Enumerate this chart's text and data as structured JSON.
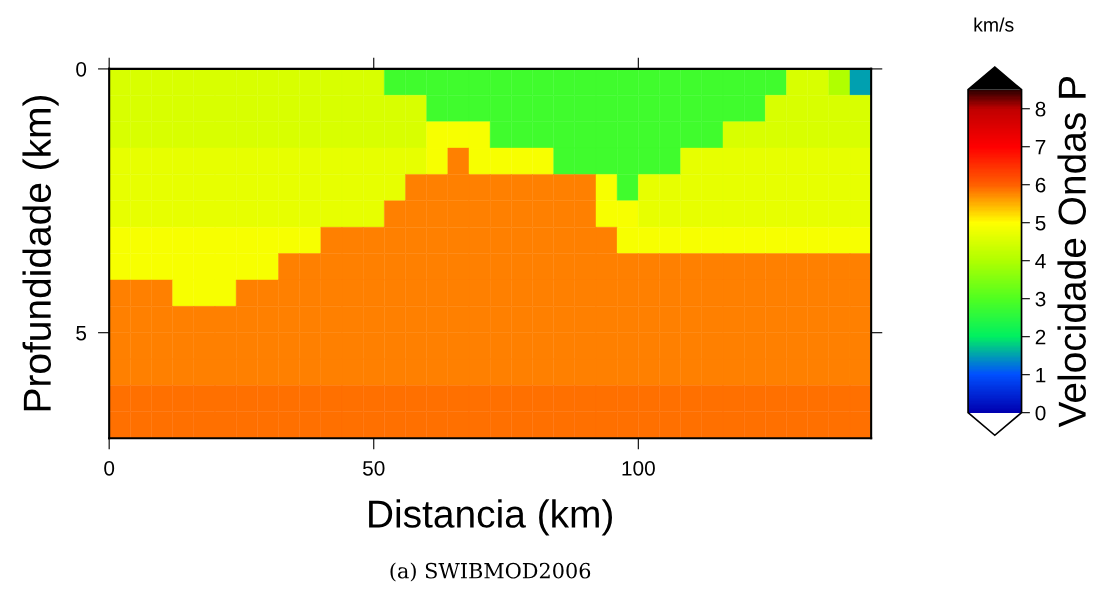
{
  "chart_data": {
    "type": "heatmap",
    "xlabel": "Distancia (km)",
    "ylabel": "Profundidade (km)",
    "clabel": "Velocidade Ondas P",
    "x": [
      2,
      6,
      10,
      14,
      18,
      22,
      26,
      30,
      34,
      38,
      42,
      46,
      50,
      54,
      58,
      62,
      66,
      70,
      74,
      78,
      82,
      86,
      90,
      94,
      98,
      102,
      106,
      110,
      114,
      118,
      122,
      126,
      130,
      134,
      138,
      142
    ],
    "y": [
      0.25,
      0.75,
      1.25,
      1.75,
      2.25,
      2.75,
      3.25,
      3.75,
      4.25,
      4.75,
      5.25,
      5.75,
      6.25,
      6.75
    ],
    "cells": [
      [
        4.5,
        4.5,
        4.5,
        4.5,
        4.5,
        4.5,
        4.5,
        4.5,
        4.5,
        4.5,
        4.5,
        4.5,
        4.5,
        2.8,
        2.8,
        2.8,
        2.8,
        2.8,
        2.8,
        2.8,
        2.8,
        2.8,
        2.8,
        2.8,
        2.8,
        2.8,
        2.8,
        2.8,
        2.8,
        2.8,
        2.8,
        2.8,
        4.5,
        4.5,
        4.0,
        1.5
      ],
      [
        4.5,
        4.5,
        4.5,
        4.5,
        4.5,
        4.5,
        4.5,
        4.5,
        4.5,
        4.5,
        4.5,
        4.5,
        4.5,
        4.5,
        4.5,
        2.8,
        2.8,
        2.8,
        2.8,
        2.8,
        2.8,
        2.8,
        2.8,
        2.8,
        2.8,
        2.8,
        2.8,
        2.8,
        2.8,
        2.8,
        2.8,
        4.5,
        4.5,
        4.5,
        4.5,
        4.5
      ],
      [
        4.5,
        4.5,
        4.5,
        4.5,
        4.5,
        4.5,
        4.5,
        4.5,
        4.5,
        4.5,
        4.5,
        4.5,
        4.5,
        4.5,
        4.5,
        4.9,
        4.9,
        4.9,
        2.8,
        2.8,
        2.8,
        2.8,
        2.8,
        2.8,
        2.8,
        2.8,
        2.8,
        2.8,
        2.8,
        4.5,
        4.5,
        4.5,
        4.5,
        4.5,
        4.5,
        4.5
      ],
      [
        4.7,
        4.7,
        4.7,
        4.7,
        4.7,
        4.7,
        4.7,
        4.7,
        4.7,
        4.7,
        4.7,
        4.7,
        4.7,
        4.7,
        4.7,
        4.9,
        5.8,
        4.9,
        4.9,
        4.9,
        4.9,
        2.8,
        2.8,
        2.8,
        2.8,
        2.8,
        2.8,
        4.7,
        4.7,
        4.7,
        4.7,
        4.7,
        4.7,
        4.7,
        4.7,
        4.7
      ],
      [
        4.7,
        4.7,
        4.7,
        4.7,
        4.7,
        4.7,
        4.7,
        4.7,
        4.7,
        4.7,
        4.7,
        4.7,
        4.7,
        4.7,
        5.8,
        5.8,
        5.8,
        5.8,
        5.8,
        5.8,
        5.8,
        5.8,
        5.8,
        4.9,
        2.8,
        4.7,
        4.7,
        4.7,
        4.7,
        4.7,
        4.7,
        4.7,
        4.7,
        4.7,
        4.7,
        4.7
      ],
      [
        4.7,
        4.7,
        4.7,
        4.7,
        4.7,
        4.7,
        4.7,
        4.7,
        4.7,
        4.7,
        4.7,
        4.7,
        4.7,
        5.8,
        5.8,
        5.8,
        5.8,
        5.8,
        5.8,
        5.8,
        5.8,
        5.8,
        5.8,
        4.9,
        4.9,
        4.7,
        4.7,
        4.7,
        4.7,
        4.7,
        4.7,
        4.7,
        4.7,
        4.7,
        4.7,
        4.7
      ],
      [
        4.9,
        4.9,
        4.9,
        4.9,
        4.9,
        4.9,
        4.9,
        4.9,
        4.9,
        4.9,
        5.8,
        5.8,
        5.8,
        5.8,
        5.8,
        5.8,
        5.8,
        5.8,
        5.8,
        5.8,
        5.8,
        5.8,
        5.8,
        5.8,
        4.9,
        4.9,
        4.9,
        4.9,
        4.9,
        4.9,
        4.9,
        4.9,
        4.9,
        4.9,
        4.9,
        4.9
      ],
      [
        4.9,
        4.9,
        4.9,
        4.9,
        4.9,
        4.9,
        4.9,
        4.9,
        5.8,
        5.8,
        5.8,
        5.8,
        5.8,
        5.8,
        5.8,
        5.8,
        5.8,
        5.8,
        5.8,
        5.8,
        5.8,
        5.8,
        5.8,
        5.8,
        5.8,
        5.8,
        5.8,
        5.8,
        5.8,
        5.8,
        5.8,
        5.8,
        5.8,
        5.8,
        5.8,
        5.8
      ],
      [
        5.8,
        5.8,
        5.8,
        4.9,
        4.9,
        4.9,
        5.8,
        5.8,
        5.8,
        5.8,
        5.8,
        5.8,
        5.8,
        5.8,
        5.8,
        5.8,
        5.8,
        5.8,
        5.8,
        5.8,
        5.8,
        5.8,
        5.8,
        5.8,
        5.8,
        5.8,
        5.8,
        5.8,
        5.8,
        5.8,
        5.8,
        5.8,
        5.8,
        5.8,
        5.8,
        5.8
      ],
      [
        5.8,
        5.8,
        5.8,
        5.8,
        5.8,
        5.8,
        5.8,
        5.8,
        5.8,
        5.8,
        5.8,
        5.8,
        5.8,
        5.8,
        5.8,
        5.8,
        5.8,
        5.8,
        5.8,
        5.8,
        5.8,
        5.8,
        5.8,
        5.8,
        5.8,
        5.8,
        5.8,
        5.8,
        5.8,
        5.8,
        5.8,
        5.8,
        5.8,
        5.8,
        5.8,
        5.8
      ],
      [
        5.8,
        5.8,
        5.8,
        5.8,
        5.8,
        5.8,
        5.8,
        5.8,
        5.8,
        5.8,
        5.8,
        5.8,
        5.8,
        5.8,
        5.8,
        5.8,
        5.8,
        5.8,
        5.8,
        5.8,
        5.8,
        5.8,
        5.8,
        5.8,
        5.8,
        5.8,
        5.8,
        5.8,
        5.8,
        5.8,
        5.8,
        5.8,
        5.8,
        5.8,
        5.8,
        5.8
      ],
      [
        5.8,
        5.8,
        5.8,
        5.8,
        5.8,
        5.8,
        5.8,
        5.8,
        5.8,
        5.8,
        5.8,
        5.8,
        5.8,
        5.8,
        5.8,
        5.8,
        5.8,
        5.8,
        5.8,
        5.8,
        5.8,
        5.8,
        5.8,
        5.8,
        5.8,
        5.8,
        5.8,
        5.8,
        5.8,
        5.8,
        5.8,
        5.8,
        5.8,
        5.8,
        5.8,
        5.8
      ],
      [
        5.9,
        5.9,
        5.9,
        5.9,
        5.9,
        5.9,
        5.9,
        5.9,
        5.9,
        5.9,
        5.9,
        5.9,
        5.9,
        5.9,
        5.9,
        5.9,
        5.9,
        5.9,
        5.9,
        5.9,
        5.9,
        5.9,
        5.9,
        5.9,
        5.9,
        5.9,
        5.9,
        5.9,
        5.9,
        5.9,
        5.9,
        5.9,
        5.9,
        5.9,
        5.9,
        5.9
      ],
      [
        5.9,
        5.9,
        5.9,
        5.9,
        5.9,
        5.9,
        5.9,
        5.9,
        5.9,
        5.9,
        5.9,
        5.9,
        5.9,
        5.9,
        5.9,
        5.9,
        5.9,
        5.9,
        5.9,
        5.9,
        5.9,
        5.9,
        5.9,
        5.9,
        5.9,
        5.9,
        5.9,
        5.9,
        5.9,
        5.9,
        5.9,
        5.9,
        5.9,
        5.9,
        5.9,
        5.9
      ]
    ],
    "xlim": [
      0,
      144
    ],
    "ylim": [
      7,
      0
    ],
    "xticks": [
      0,
      50,
      100
    ],
    "yticks": [
      0,
      5
    ],
    "clim": [
      0,
      8.5
    ],
    "cticks": [
      0,
      1,
      2,
      3,
      4,
      5,
      6,
      7,
      8
    ],
    "annotations": [
      "km/s",
      "(a) SWIBMOD2006"
    ]
  }
}
